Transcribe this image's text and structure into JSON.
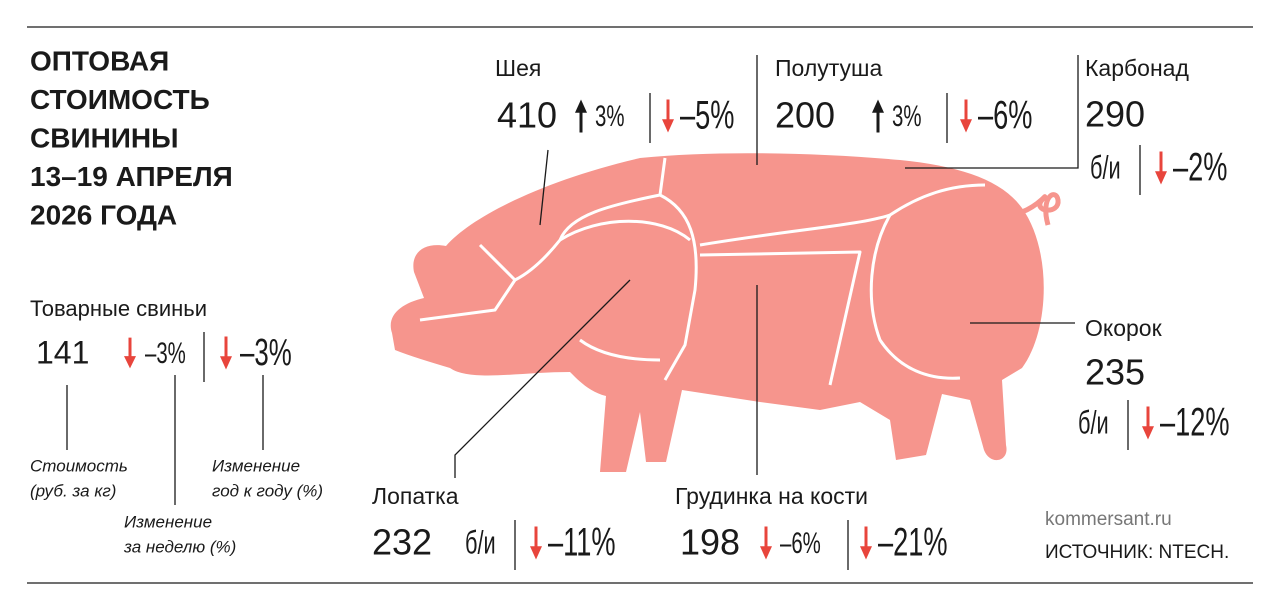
{
  "title": [
    "ОПТОВАЯ",
    "СТОИМОСТЬ",
    "СВИНИНЫ",
    "13–19 АПРЕЛЯ",
    "2026 ГОДА"
  ],
  "legend": {
    "name": "Товарные свиньи",
    "price": 141,
    "week": "–3%",
    "week_dir": "down",
    "year": "–3%",
    "year_dir": "down",
    "price_note": [
      "Стоимость",
      "(руб. за кг)"
    ],
    "week_note": [
      "Изменение",
      "за неделю (%)"
    ],
    "year_note": [
      "Изменение",
      "год к году (%)"
    ]
  },
  "cuts": [
    {
      "name": "Шея",
      "price": 410,
      "week": "3%",
      "week_dir": "up",
      "year": "–5%",
      "year_dir": "down"
    },
    {
      "name": "Полутуша",
      "price": 200,
      "week": "3%",
      "week_dir": "up",
      "year": "–6%",
      "year_dir": "down"
    },
    {
      "name": "Карбонад",
      "price": 290,
      "week": "б/и",
      "year": "–2%",
      "year_dir": "down"
    },
    {
      "name": "Окорок",
      "price": 235,
      "week": "б/и",
      "year": "–12%",
      "year_dir": "down"
    },
    {
      "name": "Лопатка",
      "price": 232,
      "week": "б/и",
      "year": "–11%",
      "year_dir": "down"
    },
    {
      "name": "Грудинка на кости",
      "price": 198,
      "week": "–6%",
      "week_dir": "down",
      "year": "–21%",
      "year_dir": "down"
    }
  ],
  "site": "kommersant.ru",
  "source": "ИСТОЧНИК: NTECH."
}
